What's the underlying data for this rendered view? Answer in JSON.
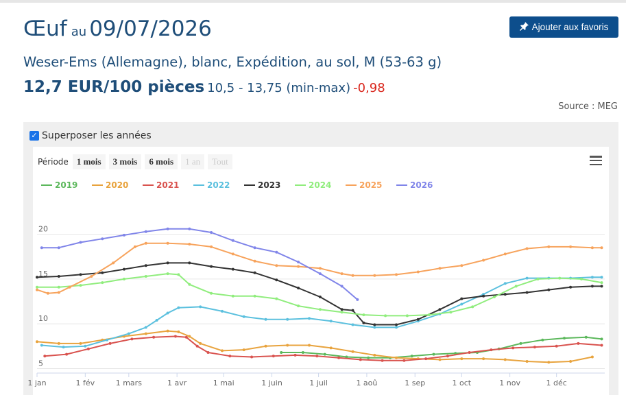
{
  "header": {
    "product": "Œuf",
    "au": "au",
    "date": "09/07/2026",
    "favorite_label": "Ajouter aux favoris",
    "subtitle": "Weser-Ems (Allemagne), blanc, Expédition, au sol, M (53-63 g)",
    "price_main": "12,7 EUR/100 pièces",
    "price_range": "10,5 - 13,75 (min-max)",
    "price_change": "-0,98",
    "source": "Source : MEG"
  },
  "controls": {
    "overlay_label": "Superposer les années",
    "overlay_checked": true,
    "period_label": "Période",
    "period_buttons": [
      "1 mois",
      "3 mois",
      "6 mois",
      "1 an",
      "Tout"
    ],
    "menu_icon": "hamburger-menu-icon"
  },
  "colors": {
    "title": "#1f4e79",
    "button": "#0d4e8c",
    "negative": "#d9261c"
  },
  "chart_data": {
    "type": "line",
    "title": "",
    "xlabel": "",
    "ylabel": "",
    "ylim": [
      4.5,
      22.5
    ],
    "xlim": [
      0,
      365
    ],
    "grid": true,
    "legend_position": "top-left",
    "y_ticks": [
      5,
      10,
      15,
      20
    ],
    "x_ticks": [
      {
        "day": 0,
        "label": "1 jan"
      },
      {
        "day": 31,
        "label": "1 fév"
      },
      {
        "day": 59,
        "label": "1 mars"
      },
      {
        "day": 90,
        "label": "1 avr"
      },
      {
        "day": 120,
        "label": "1 mai"
      },
      {
        "day": 151,
        "label": "1 juin"
      },
      {
        "day": 181,
        "label": "1 juil"
      },
      {
        "day": 212,
        "label": "1 aoû"
      },
      {
        "day": 243,
        "label": "1 sep"
      },
      {
        "day": 273,
        "label": "1 oct"
      },
      {
        "day": 304,
        "label": "1 nov"
      },
      {
        "day": 334,
        "label": "1 déc"
      }
    ],
    "series": [
      {
        "name": "2019",
        "color": "#5cb85c",
        "points": [
          [
            157,
            6.8
          ],
          [
            171,
            6.8
          ],
          [
            185,
            6.6
          ],
          [
            199,
            6.3
          ],
          [
            213,
            6.2
          ],
          [
            227,
            6.2
          ],
          [
            241,
            6.4
          ],
          [
            255,
            6.6
          ],
          [
            269,
            6.7
          ],
          [
            283,
            6.8
          ],
          [
            297,
            7.2
          ],
          [
            311,
            7.8
          ],
          [
            325,
            8.2
          ],
          [
            339,
            8.4
          ],
          [
            353,
            8.5
          ],
          [
            363,
            8.3
          ]
        ]
      },
      {
        "name": "2020",
        "color": "#e8a33d",
        "points": [
          [
            0,
            8.0
          ],
          [
            14,
            7.8
          ],
          [
            28,
            7.8
          ],
          [
            42,
            8.2
          ],
          [
            56,
            8.6
          ],
          [
            70,
            8.9
          ],
          [
            84,
            9.2
          ],
          [
            91,
            9.1
          ],
          [
            98,
            8.6
          ],
          [
            105,
            7.8
          ],
          [
            119,
            7.0
          ],
          [
            133,
            7.1
          ],
          [
            147,
            7.5
          ],
          [
            161,
            7.6
          ],
          [
            175,
            7.6
          ],
          [
            189,
            7.3
          ],
          [
            203,
            6.9
          ],
          [
            217,
            6.5
          ],
          [
            231,
            6.2
          ],
          [
            245,
            6.1
          ],
          [
            259,
            6.0
          ],
          [
            273,
            6.1
          ],
          [
            287,
            6.1
          ],
          [
            301,
            6.0
          ],
          [
            315,
            5.8
          ],
          [
            329,
            5.7
          ],
          [
            343,
            5.8
          ],
          [
            357,
            6.3
          ]
        ]
      },
      {
        "name": "2021",
        "color": "#d9534f",
        "points": [
          [
            5,
            6.4
          ],
          [
            19,
            6.6
          ],
          [
            33,
            7.2
          ],
          [
            47,
            7.8
          ],
          [
            61,
            8.3
          ],
          [
            75,
            8.5
          ],
          [
            89,
            8.6
          ],
          [
            96,
            8.5
          ],
          [
            103,
            7.5
          ],
          [
            110,
            6.8
          ],
          [
            124,
            6.4
          ],
          [
            138,
            6.3
          ],
          [
            152,
            6.4
          ],
          [
            166,
            6.5
          ],
          [
            180,
            6.4
          ],
          [
            194,
            6.2
          ],
          [
            208,
            6.0
          ],
          [
            222,
            5.9
          ],
          [
            236,
            5.9
          ],
          [
            250,
            6.1
          ],
          [
            264,
            6.4
          ],
          [
            278,
            6.8
          ],
          [
            292,
            7.1
          ],
          [
            306,
            7.3
          ],
          [
            320,
            7.4
          ],
          [
            334,
            7.5
          ],
          [
            348,
            7.8
          ],
          [
            363,
            7.6
          ]
        ]
      },
      {
        "name": "2022",
        "color": "#5bc0de",
        "points": [
          [
            3,
            7.6
          ],
          [
            17,
            7.4
          ],
          [
            31,
            7.5
          ],
          [
            45,
            8.2
          ],
          [
            59,
            8.9
          ],
          [
            70,
            9.6
          ],
          [
            77,
            10.4
          ],
          [
            84,
            11.2
          ],
          [
            91,
            11.8
          ],
          [
            105,
            11.9
          ],
          [
            119,
            11.4
          ],
          [
            133,
            10.8
          ],
          [
            147,
            10.5
          ],
          [
            161,
            10.5
          ],
          [
            175,
            10.6
          ],
          [
            189,
            10.3
          ],
          [
            203,
            9.9
          ],
          [
            217,
            9.6
          ],
          [
            231,
            9.6
          ],
          [
            245,
            10.3
          ],
          [
            259,
            11.1
          ],
          [
            273,
            12.2
          ],
          [
            287,
            13.3
          ],
          [
            301,
            14.5
          ],
          [
            315,
            15.1
          ],
          [
            329,
            15.1
          ],
          [
            343,
            15.1
          ],
          [
            357,
            15.2
          ],
          [
            363,
            15.2
          ]
        ]
      },
      {
        "name": "2023",
        "color": "#333333",
        "points": [
          [
            0,
            15.2
          ],
          [
            14,
            15.3
          ],
          [
            28,
            15.5
          ],
          [
            42,
            15.7
          ],
          [
            56,
            16.1
          ],
          [
            70,
            16.5
          ],
          [
            84,
            16.8
          ],
          [
            98,
            16.8
          ],
          [
            112,
            16.4
          ],
          [
            126,
            16.1
          ],
          [
            140,
            15.7
          ],
          [
            154,
            14.9
          ],
          [
            168,
            14.0
          ],
          [
            182,
            13.0
          ],
          [
            196,
            11.6
          ],
          [
            203,
            11.5
          ],
          [
            210,
            10.1
          ],
          [
            217,
            9.9
          ],
          [
            231,
            9.9
          ],
          [
            245,
            10.5
          ],
          [
            259,
            11.6
          ],
          [
            273,
            12.8
          ],
          [
            287,
            13.1
          ],
          [
            301,
            13.3
          ],
          [
            315,
            13.5
          ],
          [
            329,
            13.8
          ],
          [
            343,
            14.1
          ],
          [
            357,
            14.2
          ],
          [
            363,
            14.2
          ]
        ]
      },
      {
        "name": "2024",
        "color": "#90ed7d",
        "points": [
          [
            0,
            14.1
          ],
          [
            14,
            14.1
          ],
          [
            28,
            14.3
          ],
          [
            42,
            14.6
          ],
          [
            56,
            15.0
          ],
          [
            70,
            15.3
          ],
          [
            84,
            15.6
          ],
          [
            91,
            15.5
          ],
          [
            98,
            14.4
          ],
          [
            112,
            13.4
          ],
          [
            126,
            13.1
          ],
          [
            140,
            13.1
          ],
          [
            154,
            12.8
          ],
          [
            168,
            12.0
          ],
          [
            182,
            11.6
          ],
          [
            196,
            11.3
          ],
          [
            210,
            11.0
          ],
          [
            224,
            10.9
          ],
          [
            238,
            10.9
          ],
          [
            252,
            11.0
          ],
          [
            266,
            11.3
          ],
          [
            280,
            11.9
          ],
          [
            294,
            13.0
          ],
          [
            308,
            14.2
          ],
          [
            322,
            15.0
          ],
          [
            336,
            15.1
          ],
          [
            350,
            15.0
          ],
          [
            363,
            14.6
          ]
        ]
      },
      {
        "name": "2025",
        "color": "#f7a35c",
        "points": [
          [
            0,
            13.8
          ],
          [
            7,
            13.4
          ],
          [
            14,
            13.5
          ],
          [
            21,
            14.1
          ],
          [
            35,
            15.3
          ],
          [
            49,
            16.8
          ],
          [
            63,
            18.6
          ],
          [
            70,
            19.0
          ],
          [
            84,
            19.0
          ],
          [
            98,
            18.9
          ],
          [
            112,
            18.6
          ],
          [
            126,
            17.8
          ],
          [
            140,
            17.0
          ],
          [
            154,
            16.5
          ],
          [
            168,
            16.4
          ],
          [
            182,
            16.2
          ],
          [
            196,
            15.6
          ],
          [
            203,
            15.4
          ],
          [
            217,
            15.4
          ],
          [
            231,
            15.5
          ],
          [
            245,
            15.8
          ],
          [
            259,
            16.2
          ],
          [
            273,
            16.5
          ],
          [
            287,
            17.1
          ],
          [
            301,
            17.8
          ],
          [
            315,
            18.4
          ],
          [
            329,
            18.6
          ],
          [
            343,
            18.6
          ],
          [
            357,
            18.5
          ],
          [
            363,
            18.5
          ]
        ]
      },
      {
        "name": "2026",
        "color": "#8085e9",
        "points": [
          [
            3,
            18.5
          ],
          [
            14,
            18.5
          ],
          [
            28,
            19.1
          ],
          [
            42,
            19.5
          ],
          [
            56,
            19.9
          ],
          [
            70,
            20.3
          ],
          [
            84,
            20.6
          ],
          [
            98,
            20.6
          ],
          [
            112,
            20.2
          ],
          [
            126,
            19.3
          ],
          [
            140,
            18.5
          ],
          [
            154,
            18.0
          ],
          [
            168,
            16.9
          ],
          [
            182,
            15.6
          ],
          [
            196,
            14.2
          ],
          [
            206,
            12.7
          ]
        ]
      }
    ]
  }
}
